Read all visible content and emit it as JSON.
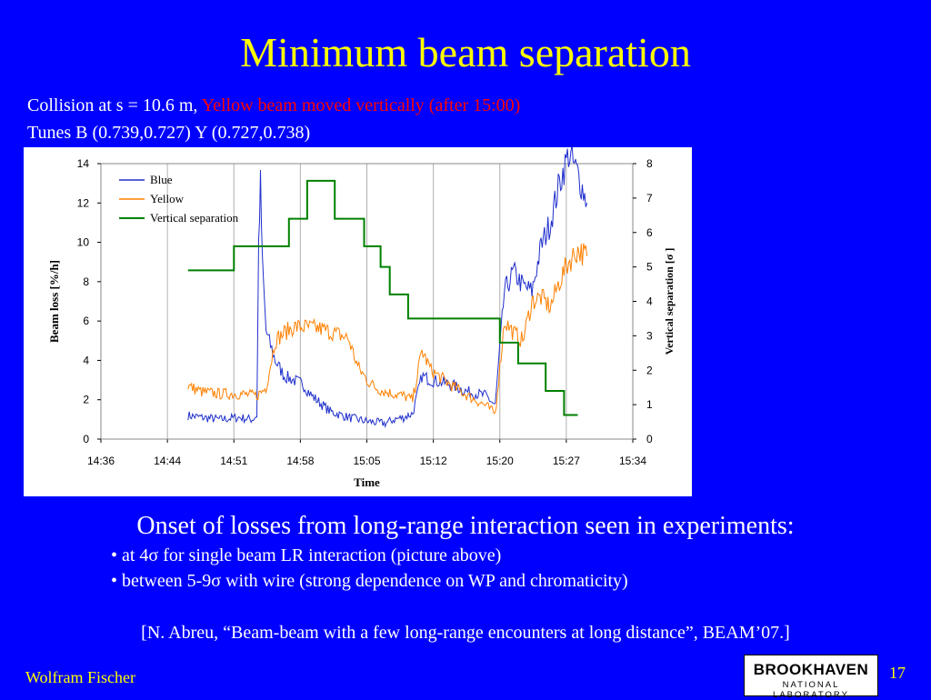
{
  "slide": {
    "title": "Minimum beam separation",
    "subtitle_line1_prefix": "Collision at s = 10.6 m, ",
    "subtitle_line1_red": "Yellow beam moved vertically (after 15:00)",
    "subtitle_line2": "Tunes B (0.739,0.727) Y (0.727,0.738)",
    "onset_text": "Onset of losses from long-range interaction seen in experiments:",
    "bullets": [
      "• at 4σ for single beam LR interaction (picture above)",
      "• between 5-9σ with wire (strong dependence on WP and chromaticity)"
    ],
    "reference": "[N. Abreu, “Beam-beam with a few long-range encounters at long distance”, BEAM’07.]",
    "author": "Wolfram Fischer",
    "page_number": "17",
    "logo_main": "BROOKHAVEN",
    "logo_sub": "NATIONAL LABORATORY"
  },
  "chart_data": {
    "type": "line",
    "xlabel": "Time",
    "ylabel": "Beam loss [%/h]",
    "y2label": "Vertical separation [σ ]",
    "x_tick_labels": [
      "14:36",
      "14:44",
      "14:51",
      "14:58",
      "15:05",
      "15:12",
      "15:20",
      "15:27",
      "15:34"
    ],
    "x_range_minutes_after_1436": [
      0,
      58
    ],
    "ylim": [
      0,
      14
    ],
    "y_ticks": [
      0,
      2,
      4,
      6,
      8,
      10,
      12,
      14
    ],
    "y2lim": [
      0,
      8
    ],
    "y2_ticks": [
      0,
      1,
      2,
      3,
      4,
      5,
      6,
      7,
      8
    ],
    "grid": "vertical",
    "legend_position": "top-left",
    "series": [
      {
        "name": "Blue",
        "color": "#1f2fcc",
        "axis": "left",
        "points": [
          [
            9.5,
            1.2
          ],
          [
            11,
            1.1
          ],
          [
            13,
            1.0
          ],
          [
            15,
            1.1
          ],
          [
            16.5,
            1.0
          ],
          [
            17,
            1.2
          ],
          [
            17.2,
            10
          ],
          [
            17.4,
            13
          ],
          [
            17.6,
            9
          ],
          [
            18,
            5.5
          ],
          [
            19,
            4.0
          ],
          [
            20,
            3.2
          ],
          [
            21,
            3.0
          ],
          [
            22,
            2.8
          ],
          [
            23,
            2.2
          ],
          [
            24,
            1.8
          ],
          [
            25,
            1.4
          ],
          [
            27,
            1.1
          ],
          [
            29,
            0.9
          ],
          [
            31,
            0.8
          ],
          [
            32,
            1.0
          ],
          [
            33,
            1.1
          ],
          [
            34,
            1.3
          ],
          [
            35,
            3.2
          ],
          [
            36,
            3.0
          ],
          [
            38,
            2.8
          ],
          [
            40,
            2.4
          ],
          [
            42,
            2.2
          ],
          [
            43,
            1.7
          ],
          [
            44,
            7.5
          ],
          [
            45,
            8.5
          ],
          [
            46,
            7.8
          ],
          [
            47,
            7.5
          ],
          [
            48,
            9.8
          ],
          [
            49,
            11
          ],
          [
            50,
            13
          ],
          [
            51,
            14.5
          ],
          [
            52,
            13.5
          ],
          [
            53,
            12
          ]
        ]
      },
      {
        "name": "Yellow",
        "color": "#ff8000",
        "axis": "left",
        "points": [
          [
            9.5,
            2.7
          ],
          [
            11,
            2.4
          ],
          [
            13,
            2.3
          ],
          [
            15,
            2.3
          ],
          [
            17,
            2.2
          ],
          [
            18,
            2.6
          ],
          [
            19,
            5.0
          ],
          [
            20,
            5.4
          ],
          [
            21,
            5.7
          ],
          [
            22,
            5.7
          ],
          [
            24,
            5.6
          ],
          [
            26,
            5.3
          ],
          [
            27,
            5.1
          ],
          [
            28,
            3.7
          ],
          [
            29,
            3.0
          ],
          [
            30,
            2.6
          ],
          [
            31,
            2.4
          ],
          [
            33,
            2.2
          ],
          [
            34,
            2.0
          ],
          [
            35,
            4.5
          ],
          [
            36,
            3.5
          ],
          [
            38,
            2.8
          ],
          [
            40,
            2.2
          ],
          [
            42,
            1.7
          ],
          [
            43,
            1.3
          ],
          [
            44,
            6.0
          ],
          [
            45,
            5.4
          ],
          [
            46,
            5.0
          ],
          [
            47,
            7.0
          ],
          [
            48,
            7.2
          ],
          [
            49,
            6.7
          ],
          [
            50,
            8.0
          ],
          [
            51,
            9.0
          ],
          [
            52,
            9.6
          ],
          [
            53,
            9.3
          ]
        ]
      },
      {
        "name": "Vertical separation",
        "color": "#008000",
        "axis": "right",
        "step": true,
        "points": [
          [
            9.5,
            4.9
          ],
          [
            14.5,
            4.9
          ],
          [
            14.5,
            5.6
          ],
          [
            20.5,
            5.6
          ],
          [
            20.5,
            6.4
          ],
          [
            22.5,
            6.4
          ],
          [
            22.5,
            7.5
          ],
          [
            25.5,
            7.5
          ],
          [
            25.5,
            6.4
          ],
          [
            28.7,
            6.4
          ],
          [
            28.7,
            5.6
          ],
          [
            30.5,
            5.6
          ],
          [
            30.5,
            5.0
          ],
          [
            31.5,
            5.0
          ],
          [
            31.5,
            4.2
          ],
          [
            33.5,
            4.2
          ],
          [
            33.5,
            3.5
          ],
          [
            43.5,
            3.5
          ],
          [
            43.5,
            2.8
          ],
          [
            45.5,
            2.8
          ],
          [
            45.5,
            2.2
          ],
          [
            48.5,
            2.2
          ],
          [
            48.5,
            1.4
          ],
          [
            50.5,
            1.4
          ],
          [
            50.5,
            0.7
          ],
          [
            52,
            0.7
          ]
        ]
      }
    ]
  }
}
